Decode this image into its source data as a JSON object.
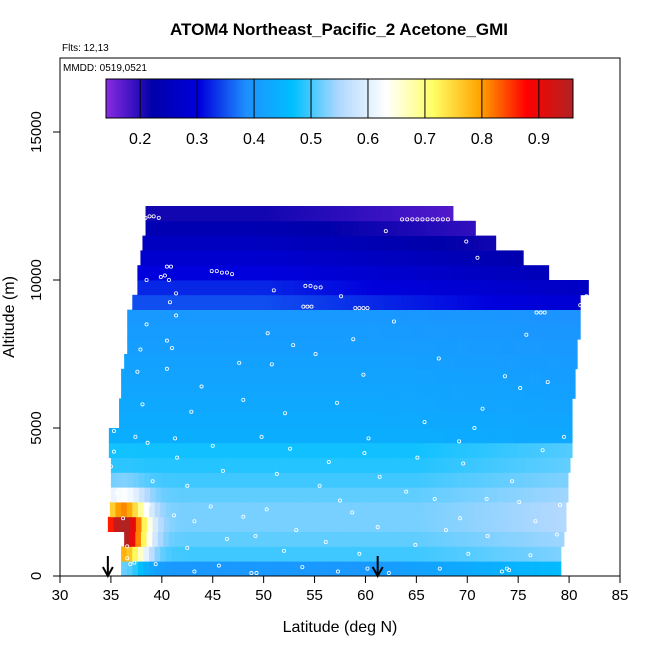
{
  "chart_data": {
    "type": "heatmap",
    "title": "ATOM4 Northeast_Pacific_2 Acetone_GMI",
    "flights_text": "Flts: 12,13",
    "dates_text": "MMDD: 0519,0521",
    "xlabel": "Latitude (deg N)",
    "ylabel": "Altitude (m)",
    "xlim": [
      30,
      85
    ],
    "ylim": [
      0,
      17500
    ],
    "x_ticks": [
      30,
      35,
      40,
      45,
      50,
      55,
      60,
      65,
      70,
      75,
      80,
      85
    ],
    "y_ticks": [
      0,
      5000,
      10000,
      15000
    ],
    "colorbar": {
      "range": [
        0.14,
        0.96
      ],
      "ticks": [
        0.2,
        0.3,
        0.4,
        0.5,
        0.6,
        0.7,
        0.8,
        0.9
      ],
      "tick_labels": [
        "0.2",
        "0.3",
        "0.4",
        "0.5",
        "0.6",
        "0.7",
        "0.8",
        "0.9"
      ],
      "colors": [
        "#8a2be2",
        "#0000aa",
        "#0000dd",
        "#1e90ff",
        "#00bfff",
        "#b0d8ff",
        "#ffffff",
        "#ffff66",
        "#ffa500",
        "#ff0000",
        "#b22222"
      ]
    },
    "arrows_latitude": [
      34.7,
      61.2
    ],
    "layers": [
      {
        "alt_bottom": 0,
        "alt_top": 500,
        "lat_min": 36.0,
        "lat_max": 79.2
      },
      {
        "alt_bottom": 500,
        "alt_top": 1000,
        "lat_min": 36.0,
        "lat_max": 79.2
      },
      {
        "alt_bottom": 1000,
        "alt_top": 1500,
        "lat_min": 36.3,
        "lat_max": 79.5
      },
      {
        "alt_bottom": 1500,
        "alt_top": 2000,
        "lat_min": 34.7,
        "lat_max": 79.7
      },
      {
        "alt_bottom": 2000,
        "alt_top": 2500,
        "lat_min": 34.9,
        "lat_max": 79.7
      },
      {
        "alt_bottom": 2500,
        "alt_top": 3000,
        "lat_min": 35.0,
        "lat_max": 79.9
      },
      {
        "alt_bottom": 3000,
        "alt_top": 3500,
        "lat_min": 35.0,
        "lat_max": 79.9
      },
      {
        "alt_bottom": 3500,
        "alt_top": 4000,
        "lat_min": 35.0,
        "lat_max": 80.1
      },
      {
        "alt_bottom": 4000,
        "alt_top": 4500,
        "lat_min": 34.8,
        "lat_max": 80.3
      },
      {
        "alt_bottom": 4500,
        "alt_top": 5000,
        "lat_min": 34.8,
        "lat_max": 80.3
      },
      {
        "alt_bottom": 5000,
        "alt_top": 5500,
        "lat_min": 35.8,
        "lat_max": 80.3
      },
      {
        "alt_bottom": 5500,
        "alt_top": 6000,
        "lat_min": 35.8,
        "lat_max": 80.3
      },
      {
        "alt_bottom": 6000,
        "alt_top": 6500,
        "lat_min": 36.0,
        "lat_max": 80.6
      },
      {
        "alt_bottom": 6500,
        "alt_top": 7000,
        "lat_min": 36.0,
        "lat_max": 80.6
      },
      {
        "alt_bottom": 7000,
        "alt_top": 7500,
        "lat_min": 36.3,
        "lat_max": 80.8
      },
      {
        "alt_bottom": 7500,
        "alt_top": 8000,
        "lat_min": 36.6,
        "lat_max": 80.8
      },
      {
        "alt_bottom": 8000,
        "alt_top": 8500,
        "lat_min": 36.6,
        "lat_max": 81.1
      },
      {
        "alt_bottom": 8500,
        "alt_top": 9000,
        "lat_min": 36.6,
        "lat_max": 81.1
      },
      {
        "alt_bottom": 9000,
        "alt_top": 9500,
        "lat_min": 37.1,
        "lat_max": 81.1
      },
      {
        "alt_bottom": 9500,
        "alt_top": 10000,
        "lat_min": 37.6,
        "lat_max": 81.9
      },
      {
        "alt_bottom": 10000,
        "alt_top": 10500,
        "lat_min": 37.6,
        "lat_max": 78.0
      },
      {
        "alt_bottom": 10500,
        "alt_top": 11000,
        "lat_min": 37.9,
        "lat_max": 75.5
      },
      {
        "alt_bottom": 11000,
        "alt_top": 11500,
        "lat_min": 38.1,
        "lat_max": 72.8
      },
      {
        "alt_bottom": 11500,
        "alt_top": 12000,
        "lat_min": 38.4,
        "lat_max": 70.8
      },
      {
        "alt_bottom": 12000,
        "alt_top": 12500,
        "lat_min": 38.4,
        "lat_max": 68.6
      }
    ],
    "obs_points": [
      {
        "x": 38.4,
        "y": 12100
      },
      {
        "x": 38.8,
        "y": 12150
      },
      {
        "x": 39.2,
        "y": 12150
      },
      {
        "x": 39.7,
        "y": 12100
      },
      {
        "x": 63.6,
        "y": 12050
      },
      {
        "x": 64.1,
        "y": 12050
      },
      {
        "x": 64.6,
        "y": 12050
      },
      {
        "x": 65.1,
        "y": 12050
      },
      {
        "x": 65.6,
        "y": 12050
      },
      {
        "x": 66.1,
        "y": 12050
      },
      {
        "x": 66.6,
        "y": 12050
      },
      {
        "x": 67.1,
        "y": 12050
      },
      {
        "x": 67.6,
        "y": 12050
      },
      {
        "x": 68.1,
        "y": 12050
      },
      {
        "x": 62.0,
        "y": 11650
      },
      {
        "x": 69.9,
        "y": 11300
      },
      {
        "x": 71.0,
        "y": 10750
      },
      {
        "x": 40.5,
        "y": 10450
      },
      {
        "x": 40.9,
        "y": 10450
      },
      {
        "x": 40.3,
        "y": 10150
      },
      {
        "x": 40.7,
        "y": 10000
      },
      {
        "x": 44.9,
        "y": 10300
      },
      {
        "x": 45.4,
        "y": 10300
      },
      {
        "x": 45.9,
        "y": 10250
      },
      {
        "x": 46.4,
        "y": 10250
      },
      {
        "x": 46.9,
        "y": 10200
      },
      {
        "x": 38.5,
        "y": 10000
      },
      {
        "x": 39.9,
        "y": 10100
      },
      {
        "x": 54.1,
        "y": 9800
      },
      {
        "x": 54.6,
        "y": 9800
      },
      {
        "x": 55.1,
        "y": 9750
      },
      {
        "x": 55.6,
        "y": 9750
      },
      {
        "x": 51.0,
        "y": 9650
      },
      {
        "x": 57.6,
        "y": 9450
      },
      {
        "x": 41.4,
        "y": 9550
      },
      {
        "x": 40.8,
        "y": 9250
      },
      {
        "x": 59.0,
        "y": 9050
      },
      {
        "x": 59.4,
        "y": 9050
      },
      {
        "x": 59.8,
        "y": 9050
      },
      {
        "x": 60.2,
        "y": 9050
      },
      {
        "x": 53.9,
        "y": 9100
      },
      {
        "x": 54.3,
        "y": 9100
      },
      {
        "x": 54.7,
        "y": 9100
      },
      {
        "x": 76.8,
        "y": 8900
      },
      {
        "x": 77.2,
        "y": 8900
      },
      {
        "x": 77.6,
        "y": 8900
      },
      {
        "x": 81.1,
        "y": 9150
      },
      {
        "x": 81.7,
        "y": 9450
      },
      {
        "x": 41.4,
        "y": 8800
      },
      {
        "x": 38.5,
        "y": 8500
      },
      {
        "x": 62.8,
        "y": 8600
      },
      {
        "x": 75.8,
        "y": 8150
      },
      {
        "x": 50.4,
        "y": 8200
      },
      {
        "x": 40.5,
        "y": 7950
      },
      {
        "x": 58.8,
        "y": 8000
      },
      {
        "x": 52.9,
        "y": 7800
      },
      {
        "x": 41.0,
        "y": 7700
      },
      {
        "x": 37.9,
        "y": 7650
      },
      {
        "x": 55.1,
        "y": 7500
      },
      {
        "x": 67.2,
        "y": 7350
      },
      {
        "x": 47.6,
        "y": 7200
      },
      {
        "x": 50.8,
        "y": 7150
      },
      {
        "x": 40.5,
        "y": 7000
      },
      {
        "x": 37.6,
        "y": 6900
      },
      {
        "x": 73.7,
        "y": 6750
      },
      {
        "x": 59.8,
        "y": 6800
      },
      {
        "x": 77.9,
        "y": 6550
      },
      {
        "x": 43.9,
        "y": 6400
      },
      {
        "x": 75.2,
        "y": 6350
      },
      {
        "x": 48.0,
        "y": 5950
      },
      {
        "x": 38.1,
        "y": 5800
      },
      {
        "x": 57.2,
        "y": 5850
      },
      {
        "x": 71.5,
        "y": 5650
      },
      {
        "x": 42.9,
        "y": 5550
      },
      {
        "x": 52.1,
        "y": 5500
      },
      {
        "x": 65.8,
        "y": 5200
      },
      {
        "x": 70.7,
        "y": 5000
      },
      {
        "x": 79.5,
        "y": 4700
      },
      {
        "x": 35.3,
        "y": 4900
      },
      {
        "x": 37.4,
        "y": 4700
      },
      {
        "x": 41.3,
        "y": 4650
      },
      {
        "x": 49.8,
        "y": 4700
      },
      {
        "x": 60.3,
        "y": 4650
      },
      {
        "x": 69.2,
        "y": 4550
      },
      {
        "x": 38.6,
        "y": 4500
      },
      {
        "x": 45.0,
        "y": 4400
      },
      {
        "x": 52.6,
        "y": 4300
      },
      {
        "x": 59.9,
        "y": 4150
      },
      {
        "x": 65.1,
        "y": 4000
      },
      {
        "x": 77.4,
        "y": 4250
      },
      {
        "x": 35.3,
        "y": 4200
      },
      {
        "x": 41.5,
        "y": 4000
      },
      {
        "x": 56.4,
        "y": 3850
      },
      {
        "x": 69.6,
        "y": 3800
      },
      {
        "x": 35.0,
        "y": 3700
      },
      {
        "x": 46.0,
        "y": 3550
      },
      {
        "x": 51.3,
        "y": 3450
      },
      {
        "x": 61.4,
        "y": 3350
      },
      {
        "x": 74.4,
        "y": 3200
      },
      {
        "x": 39.1,
        "y": 3200
      },
      {
        "x": 42.5,
        "y": 3050
      },
      {
        "x": 55.5,
        "y": 3050
      },
      {
        "x": 64.0,
        "y": 2850
      },
      {
        "x": 66.8,
        "y": 2600
      },
      {
        "x": 71.9,
        "y": 2600
      },
      {
        "x": 75.1,
        "y": 2500
      },
      {
        "x": 79.1,
        "y": 2400
      },
      {
        "x": 57.5,
        "y": 2550
      },
      {
        "x": 35.6,
        "y": 2800
      },
      {
        "x": 38.7,
        "y": 2400
      },
      {
        "x": 44.8,
        "y": 2350
      },
      {
        "x": 50.3,
        "y": 2250
      },
      {
        "x": 58.7,
        "y": 2150
      },
      {
        "x": 41.2,
        "y": 2050
      },
      {
        "x": 48.0,
        "y": 2000
      },
      {
        "x": 69.3,
        "y": 1950
      },
      {
        "x": 76.7,
        "y": 1850
      },
      {
        "x": 36.2,
        "y": 1950
      },
      {
        "x": 43.2,
        "y": 1850
      },
      {
        "x": 53.2,
        "y": 1550
      },
      {
        "x": 61.2,
        "y": 1650
      },
      {
        "x": 67.9,
        "y": 1550
      },
      {
        "x": 49.2,
        "y": 1350
      },
      {
        "x": 72.0,
        "y": 1350
      },
      {
        "x": 78.8,
        "y": 1400
      },
      {
        "x": 38.9,
        "y": 1350
      },
      {
        "x": 46.4,
        "y": 1250
      },
      {
        "x": 56.1,
        "y": 1150
      },
      {
        "x": 64.9,
        "y": 1050
      },
      {
        "x": 36.6,
        "y": 1000
      },
      {
        "x": 42.5,
        "y": 950
      },
      {
        "x": 52.0,
        "y": 850
      },
      {
        "x": 59.4,
        "y": 750
      },
      {
        "x": 70.1,
        "y": 750
      },
      {
        "x": 76.2,
        "y": 700
      },
      {
        "x": 36.6,
        "y": 600
      },
      {
        "x": 36.9,
        "y": 400
      },
      {
        "x": 37.3,
        "y": 450
      },
      {
        "x": 39.4,
        "y": 400
      },
      {
        "x": 45.6,
        "y": 350
      },
      {
        "x": 53.8,
        "y": 300
      },
      {
        "x": 60.2,
        "y": 250
      },
      {
        "x": 67.3,
        "y": 250
      },
      {
        "x": 73.9,
        "y": 250
      },
      {
        "x": 48.8,
        "y": 100
      },
      {
        "x": 49.3,
        "y": 100
      },
      {
        "x": 57.3,
        "y": 150
      },
      {
        "x": 73.4,
        "y": 150
      },
      {
        "x": 74.1,
        "y": 200
      },
      {
        "x": 43.2,
        "y": 150
      },
      {
        "x": 62.3,
        "y": 100
      }
    ]
  }
}
